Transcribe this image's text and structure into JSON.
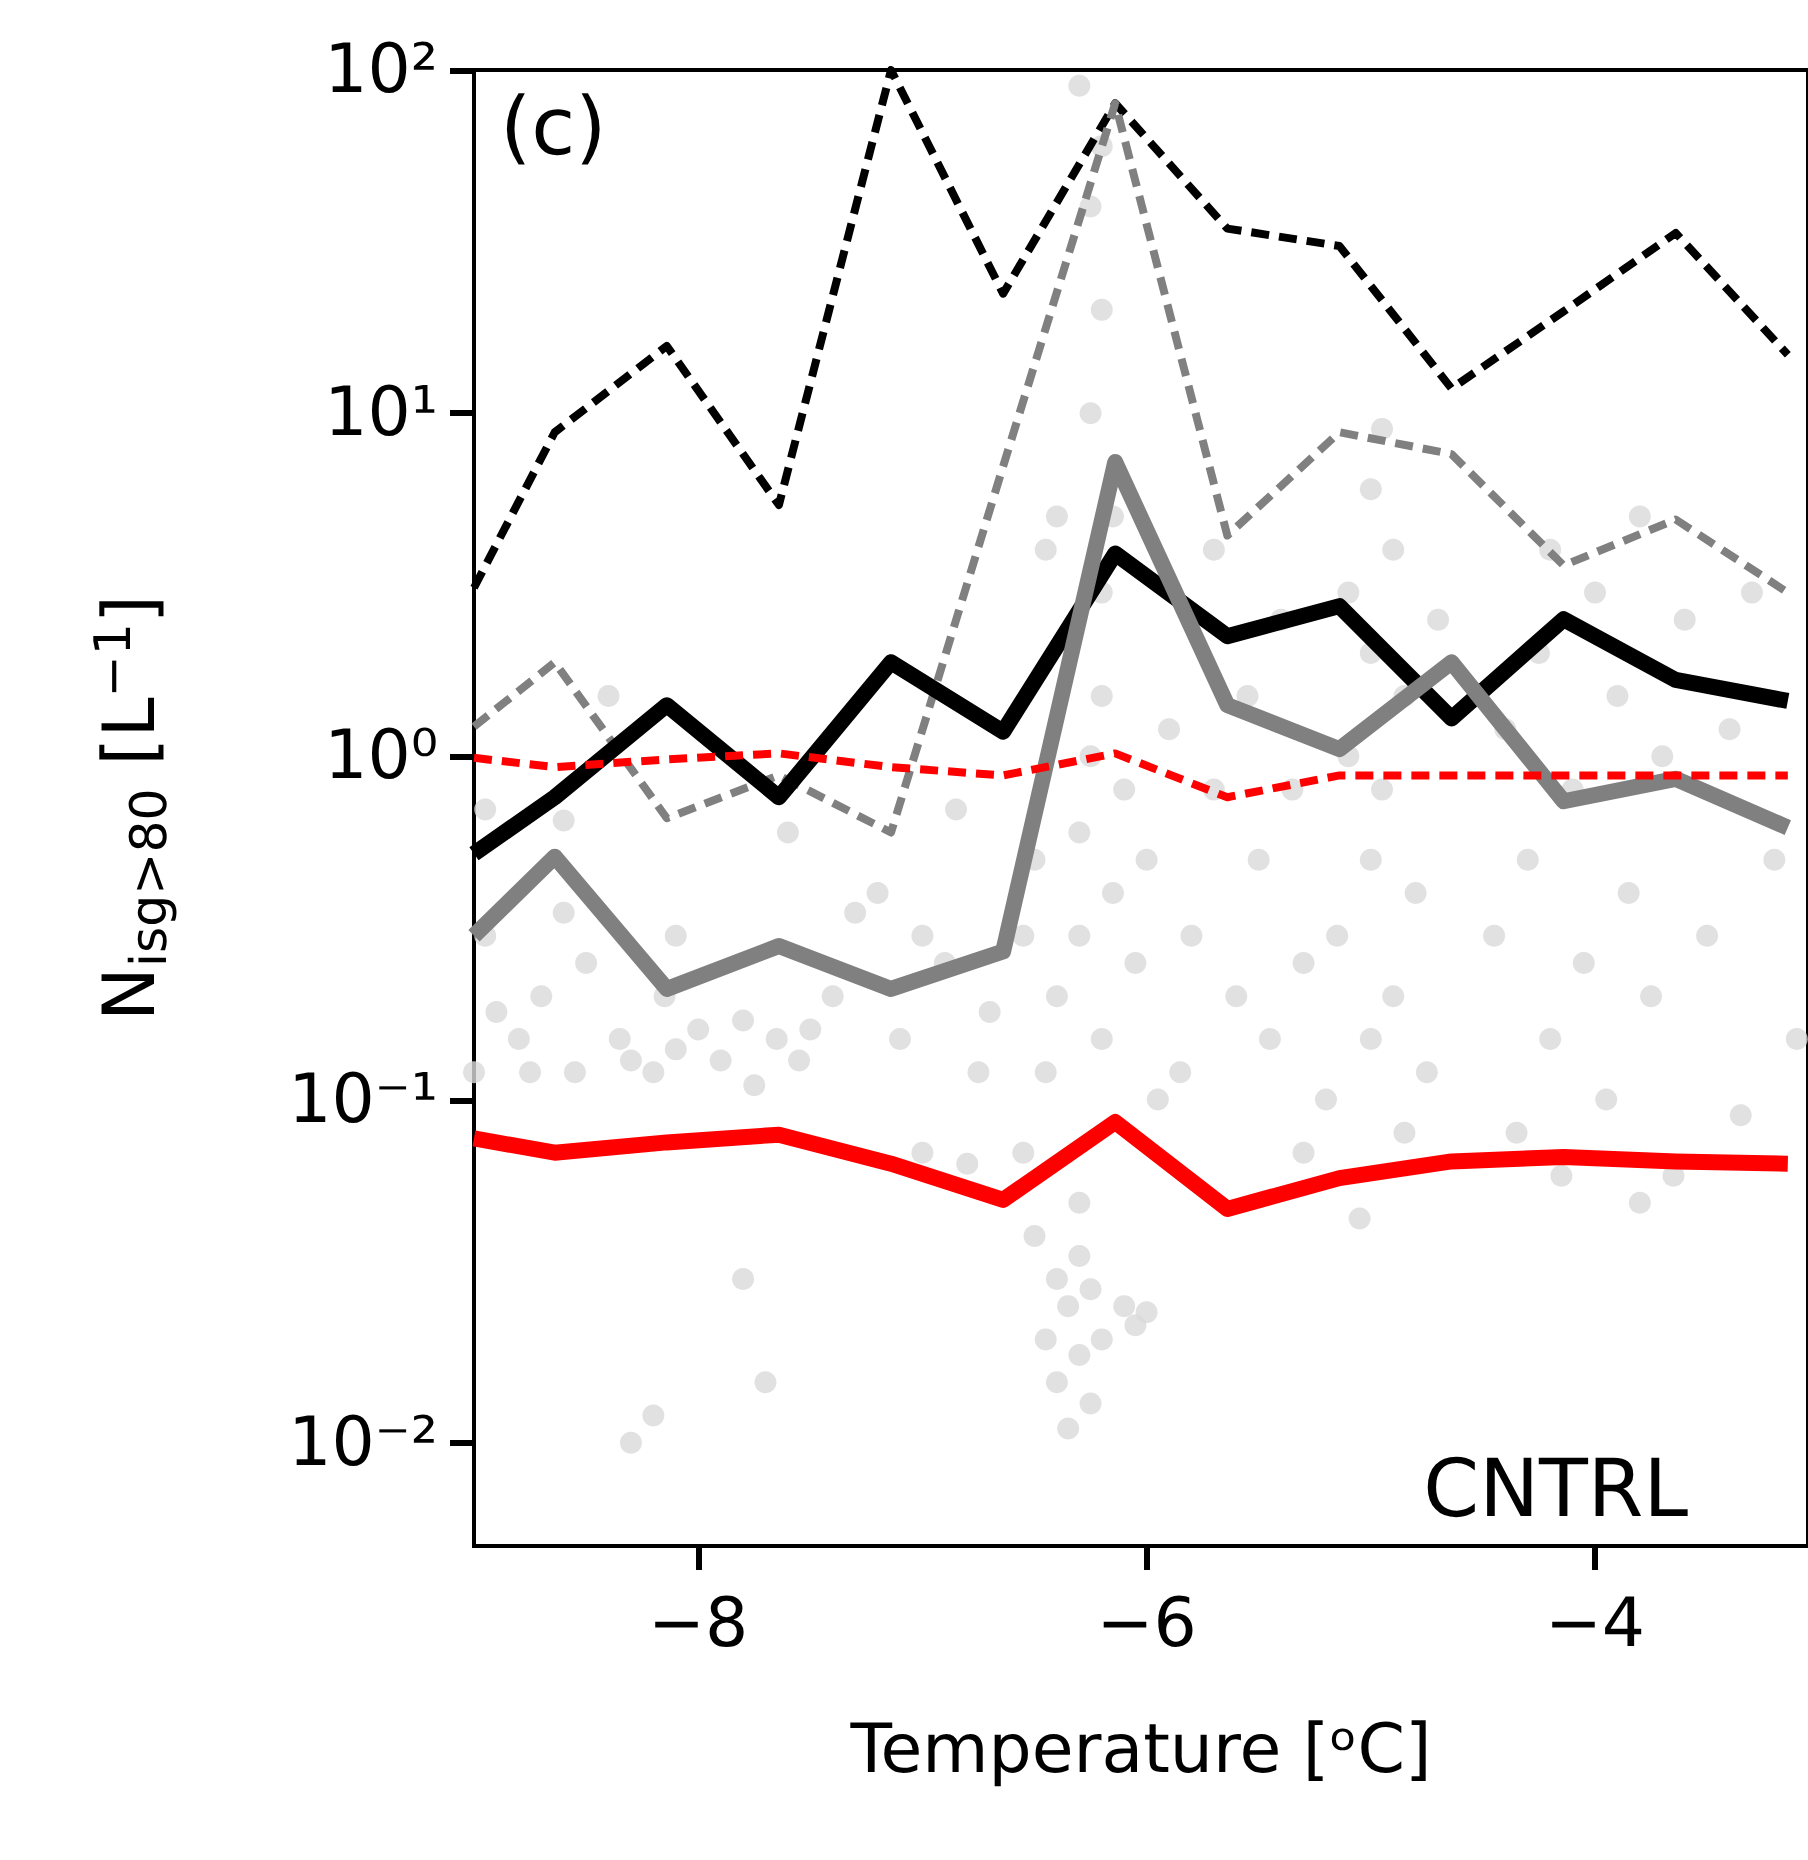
{
  "chart_data": {
    "type": "line",
    "xlabel": "Temperature [ᵒC]",
    "ylabel": "N$_{isg>80}$ [L$^{−1}$]",
    "annotations": [
      "(c)",
      "CNTRL"
    ],
    "log": "y",
    "grid": false,
    "marker": "none",
    "xlim": [
      -9,
      -3.05
    ],
    "xticks": [
      {
        "value": -8,
        "label": "−8"
      },
      {
        "value": -6,
        "label": "−6"
      },
      {
        "value": -4,
        "label": "−4"
      }
    ],
    "ylim": [
      0.005,
      100
    ],
    "yticks": [
      {
        "value": 0.01,
        "label": "10⁻²"
      },
      {
        "value": 0.1,
        "label": "10⁻¹"
      },
      {
        "value": 1,
        "label": "10⁰"
      },
      {
        "value": 10,
        "label": "10¹"
      },
      {
        "value": 100,
        "label": "10²"
      }
    ],
    "x": [
      -9,
      -8.64,
      -8.14,
      -7.64,
      -7.14,
      -6.64,
      -6.14,
      -5.64,
      -5.14,
      -4.64,
      -4.14,
      -3.64,
      -3.14
    ],
    "series": [
      {
        "type": "scatter",
        "marker": "circle",
        "color": "#d9d9d9",
        "x": [
          -8.95,
          -8.9,
          -8.8,
          -8.75,
          -8.7,
          -8.6,
          -8.55,
          -8.5,
          -8.4,
          -8.35,
          -8.3,
          -8.2,
          -8.15,
          -8.1,
          -8.0,
          -7.9,
          -7.8,
          -7.75,
          -7.65,
          -7.55,
          -7.5,
          -7.4,
          -7.3,
          -7.2,
          -7.1,
          -7.0,
          -6.9,
          -6.85,
          -6.75,
          -6.7,
          -8.3,
          -8.2,
          -7.8,
          -7.7,
          -8.1,
          -7.6,
          -9,
          -8.95,
          -8.6,
          -7.0,
          -6.8,
          -6.5,
          -6.45,
          -6.4,
          -6.4,
          -6.35,
          -6.35,
          -6.3,
          -6.3,
          -6.3,
          -6.25,
          -6.25,
          -6.2,
          -6.1,
          -6.05,
          -6.0,
          -6.55,
          -6.45,
          -6.4,
          -6.3,
          -6.3,
          -6.25,
          -6.2,
          -6.2,
          -6.2,
          -6.15,
          -6.25,
          -6.2,
          -6.25,
          -6.3,
          -6.2,
          -6.15,
          -6.1,
          -6.05,
          -6.0,
          -5.95,
          -5.9,
          -6.45,
          -6.4,
          -6.5,
          -6.55,
          -5.85,
          -5.8,
          -5.7,
          -5.7,
          -5.6,
          -5.55,
          -5.5,
          -5.45,
          -5.4,
          -5.35,
          -5.3,
          -5.3,
          -5.2,
          -5.15,
          -5.1,
          -5.1,
          -5.05,
          -5.0,
          -5.0,
          -5.0,
          -5.0,
          -4.95,
          -4.95,
          -4.9,
          -4.9,
          -4.85,
          -4.85,
          -4.8,
          -4.75,
          -4.7,
          -4.45,
          -4.4,
          -4.35,
          -4.3,
          -4.25,
          -4.2,
          -4.2,
          -4.15,
          -4.1,
          -4.05,
          -4.0,
          -3.95,
          -3.9,
          -3.85,
          -3.8,
          -3.8,
          -3.75,
          -3.7,
          -3.65,
          -3.6,
          -3.5,
          -3.4,
          -3.35,
          -3.3,
          -3.2,
          -3.1
        ],
        "values": [
          0.3,
          0.18,
          0.15,
          0.12,
          0.2,
          0.35,
          0.12,
          0.25,
          1.5,
          0.15,
          0.13,
          0.12,
          0.2,
          0.14,
          0.16,
          0.13,
          0.17,
          0.11,
          0.15,
          0.13,
          0.16,
          0.2,
          0.35,
          0.4,
          0.15,
          0.3,
          0.25,
          0.7,
          0.12,
          0.18,
          0.01,
          0.012,
          0.03,
          0.015,
          0.3,
          0.6,
          0.12,
          0.7,
          0.65,
          0.07,
          0.065,
          0.04,
          0.02,
          0.03,
          0.015,
          0.025,
          0.011,
          0.018,
          0.035,
          0.05,
          0.013,
          0.028,
          0.02,
          0.025,
          0.022,
          0.024,
          0.07,
          0.12,
          0.2,
          0.3,
          0.6,
          1.0,
          1.5,
          0.15,
          3,
          5,
          10,
          20,
          40,
          90,
          60,
          0.4,
          0.8,
          0.25,
          0.5,
          0.1,
          1.2,
          4,
          5,
          0.5,
          0.3,
          0.12,
          0.3,
          0.8,
          4,
          0.2,
          1.5,
          0.5,
          0.15,
          2.5,
          0.8,
          0.25,
          0.07,
          0.1,
          0.3,
          1,
          3,
          0.045,
          0.15,
          0.5,
          2,
          6,
          9,
          0.8,
          0.2,
          4,
          0.08,
          1.5,
          0.4,
          0.12,
          2.5,
          0.3,
          1.2,
          0.08,
          0.5,
          2,
          0.15,
          4,
          0.06,
          0.8,
          0.25,
          3,
          0.1,
          1.5,
          0.4,
          0.05,
          5,
          0.2,
          1,
          0.06,
          2.5,
          0.3,
          1.2,
          0.09,
          3,
          0.5,
          0.15
        ]
      },
      {
        "line_style": "dashed",
        "color": "#000000",
        "values": [
          3.1,
          8.8,
          15.7,
          5.4,
          100,
          22.3,
          80,
          34.5,
          30.7,
          11.8,
          19.8,
          33.5,
          14.8
        ]
      },
      {
        "line_style": "dashed",
        "color": "#808080",
        "values": [
          1.22,
          1.88,
          0.66,
          0.88,
          0.6,
          7.0,
          80,
          4.4,
          8.8,
          7.6,
          3.6,
          4.9,
          3.0
        ]
      },
      {
        "line_style": "solid",
        "color": "#000000",
        "values": [
          0.52,
          0.76,
          1.41,
          0.76,
          1.88,
          1.18,
          3.9,
          2.24,
          2.74,
          1.29,
          2.51,
          1.67,
          1.45
        ]
      },
      {
        "line_style": "solid",
        "color": "#808080",
        "values": [
          0.3,
          0.51,
          0.21,
          0.28,
          0.21,
          0.27,
          7.2,
          1.41,
          1.05,
          1.88,
          0.74,
          0.86,
          0.62
        ]
      },
      {
        "line_style": "dashed",
        "color": "#ff0000",
        "values": [
          0.99,
          0.93,
          0.98,
          1.02,
          0.93,
          0.88,
          1.02,
          0.76,
          0.88,
          0.88,
          0.88,
          0.88,
          0.88
        ]
      },
      {
        "line_style": "solid",
        "color": "#ff0000",
        "values": [
          0.077,
          0.07,
          0.075,
          0.079,
          0.065,
          0.051,
          0.086,
          0.048,
          0.059,
          0.066,
          0.068,
          0.066,
          0.065
        ]
      }
    ]
  }
}
